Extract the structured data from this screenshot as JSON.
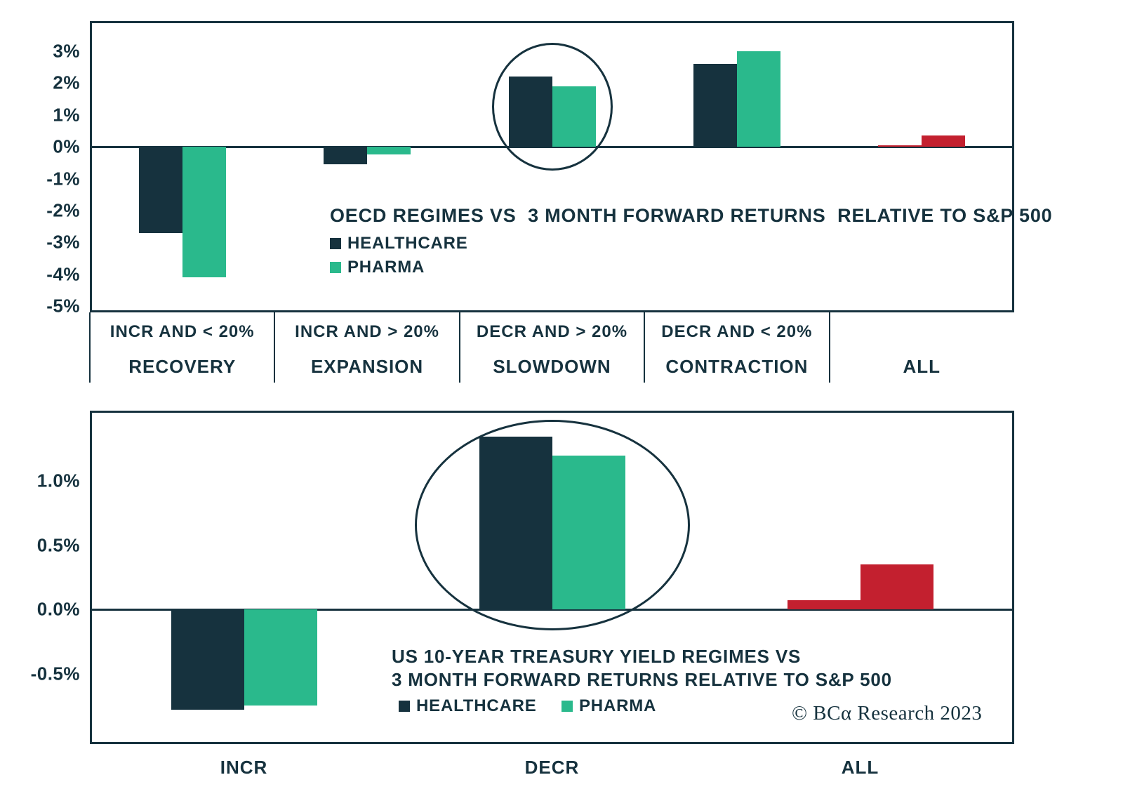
{
  "colors": {
    "navy": "#16323e",
    "green": "#2ab98c",
    "red": "#c3202f",
    "background": "#ffffff"
  },
  "chart_data": [
    {
      "type": "bar",
      "title_lines": [
        "OECD REGIMES VS  3 MONTH FORWARD RETURNS  RELATIVE TO S&P 500"
      ],
      "legend": [
        "HEALTHCARE",
        "PHARMA"
      ],
      "legend_position": "inside-middle-left",
      "grid": false,
      "ylim": [
        -5.2,
        3.95
      ],
      "yticks": [
        {
          "label": "3%",
          "value": 3
        },
        {
          "label": "2%",
          "value": 2
        },
        {
          "label": "1%",
          "value": 1
        },
        {
          "label": "0%",
          "value": 0
        },
        {
          "label": "-1%",
          "value": -1
        },
        {
          "label": "-2%",
          "value": -2
        },
        {
          "label": "-3%",
          "value": -3
        },
        {
          "label": "-4%",
          "value": -4
        },
        {
          "label": "-5%",
          "value": -5
        }
      ],
      "categories": [
        {
          "regime": "INCR AND < 20%",
          "name": "RECOVERY"
        },
        {
          "regime": "INCR AND > 20%",
          "name": "EXPANSION"
        },
        {
          "regime": "DECR AND > 20%",
          "name": "SLOWDOWN"
        },
        {
          "regime": "DECR AND < 20%",
          "name": "CONTRACTION"
        },
        {
          "regime": "",
          "name": "ALL"
        }
      ],
      "series": [
        {
          "name": "HEALTHCARE",
          "color_key": "navy",
          "values": [
            -2.7,
            -0.55,
            2.2,
            2.6,
            0.05
          ]
        },
        {
          "name": "PHARMA",
          "color_key": "green",
          "values": [
            -4.1,
            -0.25,
            1.9,
            3.0,
            0.35
          ]
        }
      ],
      "red_category_index": 4,
      "red_category_name": "ALL",
      "circle_category_index": 2,
      "circled_category_name": "SLOWDOWN"
    },
    {
      "type": "bar",
      "title_lines": [
        "US 10-YEAR TREASURY YIELD REGIMES VS",
        "3 MONTH FORWARD RETURNS RELATIVE TO S&P 500"
      ],
      "legend": [
        "HEALTHCARE",
        "PHARMA"
      ],
      "legend_position": "inside-bottom-center",
      "grid": false,
      "ylim": [
        -1.05,
        1.55
      ],
      "yticks": [
        {
          "label": "1.0%",
          "value": 1.0
        },
        {
          "label": "0.5%",
          "value": 0.5
        },
        {
          "label": "0.0%",
          "value": 0.0
        },
        {
          "label": "-0.5%",
          "value": -0.5
        }
      ],
      "categories": [
        {
          "regime": "",
          "name": "INCR"
        },
        {
          "regime": "",
          "name": "DECR"
        },
        {
          "regime": "",
          "name": "ALL"
        }
      ],
      "series": [
        {
          "name": "HEALTHCARE",
          "color_key": "navy",
          "values": [
            -0.78,
            1.35,
            0.07
          ]
        },
        {
          "name": "PHARMA",
          "color_key": "green",
          "values": [
            -0.75,
            1.2,
            0.35
          ]
        }
      ],
      "red_category_index": 2,
      "red_category_name": "ALL",
      "circle_category_index": 1,
      "circled_category_name": "DECR",
      "copyright": "© BCα Research 2023"
    }
  ]
}
